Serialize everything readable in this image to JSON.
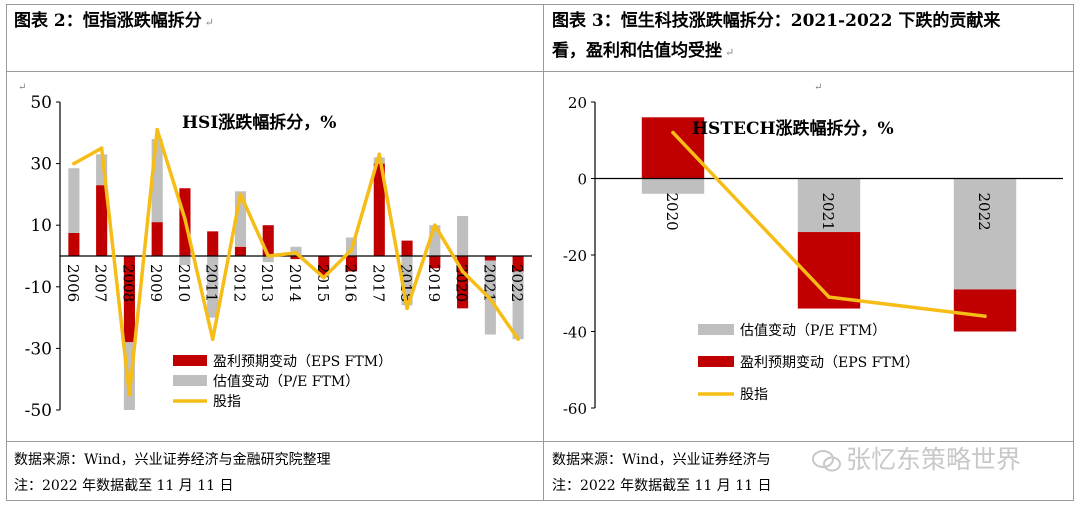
{
  "left_panel": {
    "title": "图表 2：恒指涨跌幅拆分",
    "source": "数据来源：Wind，兴业证券经济与金融研究院整理",
    "note": "注：2022 年数据截至 11 月 11 日"
  },
  "right_panel": {
    "title_line1": "图表 3：恒生科技涨跌幅拆分：2021-2022 下跌的贡献来",
    "title_line2": "看，盈利和估值均受挫",
    "source": "数据来源：Wind，兴业证券经济与",
    "note": "注：2022 年数据截至 11 月 11 日"
  },
  "watermark": "张忆东策略世界",
  "colors": {
    "eps": "#c00000",
    "pe": "#bfbfbf",
    "index": "#f6bd16"
  },
  "chart_data": [
    {
      "type": "bar",
      "stacked": true,
      "title": "HSI涨跌幅拆分，%",
      "categories": [
        "2006",
        "2007",
        "2008",
        "2009",
        "2010",
        "2011",
        "2012",
        "2013",
        "2014",
        "2015",
        "2016",
        "2017",
        "2018",
        "2019",
        "2020",
        "2021",
        "2022"
      ],
      "series": [
        {
          "name": "盈利预期变动（EPS FTM）",
          "kind": "bar",
          "values": [
            7.5,
            23,
            -28,
            11,
            22,
            8,
            3,
            10,
            -1,
            -6,
            -5,
            30,
            5,
            -4,
            -17,
            -1.5,
            -5
          ]
        },
        {
          "name": "估值变动（P/E FTM）",
          "kind": "bar",
          "values": [
            21,
            10,
            -22,
            27,
            -3,
            -20,
            18,
            -2,
            3,
            -1,
            6,
            2,
            -16,
            10,
            13,
            -24,
            -22
          ]
        },
        {
          "name": "股指",
          "kind": "line",
          "values": [
            30,
            35,
            -45,
            41,
            12,
            -27,
            20,
            0,
            1,
            -7,
            2,
            33,
            -17,
            10,
            -5,
            -14,
            -27
          ]
        }
      ],
      "yticks": [
        "50",
        "30",
        "10",
        "-10",
        "-30",
        "-50"
      ],
      "ylim": [
        -50,
        50
      ],
      "legend": "bottom-center"
    },
    {
      "type": "bar",
      "stacked": true,
      "title": "HSTECH涨跌幅拆分，%",
      "categories": [
        "2020",
        "2021",
        "2022"
      ],
      "series": [
        {
          "name": "估值变动（P/E FTM）",
          "kind": "bar",
          "values": [
            -4,
            -14,
            -29
          ]
        },
        {
          "name": "盈利预期变动（EPS FTM）",
          "kind": "bar",
          "values": [
            16,
            -20,
            -11
          ]
        },
        {
          "name": "股指",
          "kind": "line",
          "values": [
            12,
            -31,
            -36
          ]
        }
      ],
      "yticks": [
        "20",
        "0",
        "-20",
        "-40",
        "-60"
      ],
      "ylim": [
        -60,
        20
      ],
      "legend": "bottom-center"
    }
  ]
}
